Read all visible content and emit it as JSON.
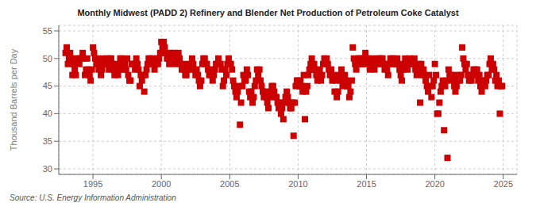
{
  "chart_data": {
    "type": "scatter",
    "title": "Monthly Midwest (PADD 2) Refinery and Blender Net Production of Petroleum Coke Catalyst",
    "ylabel": "Thousand Barrels per Day",
    "annotations": [
      "Source: U.S. Energy Information Administration"
    ],
    "color": "#cc0000",
    "marker": "square",
    "grid": true,
    "xlim": [
      1992.5,
      2026.0
    ],
    "ylim": [
      29,
      56
    ],
    "xticks": [
      1995,
      2000,
      2005,
      2010,
      2015,
      2020,
      2025
    ],
    "yticks": [
      30,
      35,
      40,
      45,
      50,
      55
    ],
    "x": [
      1993.0,
      1993.08,
      1993.17,
      1993.25,
      1993.33,
      1993.42,
      1993.5,
      1993.58,
      1993.67,
      1993.75,
      1993.83,
      1993.92,
      1994.0,
      1994.08,
      1994.17,
      1994.25,
      1994.33,
      1994.42,
      1994.5,
      1994.58,
      1994.67,
      1994.75,
      1994.83,
      1994.92,
      1995.0,
      1995.08,
      1995.17,
      1995.25,
      1995.33,
      1995.42,
      1995.5,
      1995.58,
      1995.67,
      1995.75,
      1995.83,
      1995.92,
      1996.0,
      1996.08,
      1996.17,
      1996.25,
      1996.33,
      1996.42,
      1996.5,
      1996.58,
      1996.67,
      1996.75,
      1996.83,
      1996.92,
      1997.0,
      1997.08,
      1997.17,
      1997.25,
      1997.33,
      1997.42,
      1997.5,
      1997.58,
      1997.67,
      1997.75,
      1997.83,
      1997.92,
      1998.0,
      1998.08,
      1998.17,
      1998.25,
      1998.33,
      1998.42,
      1998.5,
      1998.58,
      1998.67,
      1998.75,
      1998.83,
      1998.92,
      1999.0,
      1999.08,
      1999.17,
      1999.25,
      1999.33,
      1999.42,
      1999.5,
      1999.58,
      1999.67,
      1999.75,
      1999.83,
      1999.92,
      2000.0,
      2000.08,
      2000.17,
      2000.25,
      2000.33,
      2000.42,
      2000.5,
      2000.58,
      2000.67,
      2000.75,
      2000.83,
      2000.92,
      2001.0,
      2001.08,
      2001.17,
      2001.25,
      2001.33,
      2001.42,
      2001.5,
      2001.58,
      2001.67,
      2001.75,
      2001.83,
      2001.92,
      2002.0,
      2002.08,
      2002.17,
      2002.25,
      2002.33,
      2002.42,
      2002.5,
      2002.58,
      2002.67,
      2002.75,
      2002.83,
      2002.92,
      2003.0,
      2003.08,
      2003.17,
      2003.25,
      2003.33,
      2003.42,
      2003.5,
      2003.58,
      2003.67,
      2003.75,
      2003.83,
      2003.92,
      2004.0,
      2004.08,
      2004.17,
      2004.25,
      2004.33,
      2004.42,
      2004.5,
      2004.58,
      2004.67,
      2004.75,
      2004.83,
      2004.92,
      2005.0,
      2005.08,
      2005.17,
      2005.25,
      2005.33,
      2005.42,
      2005.5,
      2005.58,
      2005.67,
      2005.75,
      2005.83,
      2005.92,
      2006.0,
      2006.08,
      2006.17,
      2006.25,
      2006.33,
      2006.42,
      2006.5,
      2006.58,
      2006.67,
      2006.75,
      2006.83,
      2006.92,
      2007.0,
      2007.08,
      2007.17,
      2007.25,
      2007.33,
      2007.42,
      2007.5,
      2007.58,
      2007.67,
      2007.75,
      2007.83,
      2007.92,
      2008.0,
      2008.08,
      2008.17,
      2008.25,
      2008.33,
      2008.42,
      2008.5,
      2008.58,
      2008.67,
      2008.75,
      2008.83,
      2008.92,
      2009.0,
      2009.08,
      2009.17,
      2009.25,
      2009.33,
      2009.42,
      2009.5,
      2009.58,
      2009.67,
      2009.75,
      2009.83,
      2009.92,
      2010.0,
      2010.08,
      2010.17,
      2010.25,
      2010.33,
      2010.42,
      2010.5,
      2010.58,
      2010.67,
      2010.75,
      2010.83,
      2010.92,
      2011.0,
      2011.08,
      2011.17,
      2011.25,
      2011.33,
      2011.42,
      2011.5,
      2011.58,
      2011.67,
      2011.75,
      2011.83,
      2011.92,
      2012.0,
      2012.08,
      2012.17,
      2012.25,
      2012.33,
      2012.42,
      2012.5,
      2012.58,
      2012.67,
      2012.75,
      2012.83,
      2012.92,
      2013.0,
      2013.08,
      2013.17,
      2013.25,
      2013.33,
      2013.42,
      2013.5,
      2013.58,
      2013.67,
      2013.75,
      2013.83,
      2013.92,
      2014.0,
      2014.08,
      2014.17,
      2014.25,
      2014.33,
      2014.42,
      2014.5,
      2014.58,
      2014.67,
      2014.75,
      2014.83,
      2014.92,
      2015.0,
      2015.08,
      2015.17,
      2015.25,
      2015.33,
      2015.42,
      2015.5,
      2015.58,
      2015.67,
      2015.75,
      2015.83,
      2015.92,
      2016.0,
      2016.08,
      2016.17,
      2016.25,
      2016.33,
      2016.42,
      2016.5,
      2016.58,
      2016.67,
      2016.75,
      2016.83,
      2016.92,
      2017.0,
      2017.08,
      2017.17,
      2017.25,
      2017.33,
      2017.42,
      2017.5,
      2017.58,
      2017.67,
      2017.75,
      2017.83,
      2017.92,
      2018.0,
      2018.08,
      2018.17,
      2018.25,
      2018.33,
      2018.42,
      2018.5,
      2018.58,
      2018.67,
      2018.75,
      2018.83,
      2018.92,
      2019.0,
      2019.08,
      2019.17,
      2019.25,
      2019.33,
      2019.42,
      2019.5,
      2019.58,
      2019.67,
      2019.75,
      2019.83,
      2019.92,
      2020.0,
      2020.08,
      2020.17,
      2020.25,
      2020.33,
      2020.42,
      2020.5,
      2020.58,
      2020.67,
      2020.75,
      2020.83,
      2020.92,
      2021.0,
      2021.08,
      2021.17,
      2021.25,
      2021.33,
      2021.42,
      2021.5,
      2021.58,
      2021.67,
      2021.75,
      2021.83,
      2021.92,
      2022.0,
      2022.08,
      2022.17,
      2022.25,
      2022.33,
      2022.42,
      2022.5,
      2022.58,
      2022.67,
      2022.75,
      2022.83,
      2022.92,
      2023.0,
      2023.08,
      2023.17,
      2023.25,
      2023.33,
      2023.42,
      2023.5,
      2023.58,
      2023.67,
      2023.75,
      2023.83,
      2023.92,
      2024.0,
      2024.08,
      2024.17,
      2024.25,
      2024.33,
      2024.42,
      2024.5,
      2024.58,
      2024.67,
      2024.75,
      2024.83,
      2024.92
    ],
    "values": [
      51,
      52,
      49,
      50,
      51,
      50,
      47,
      49,
      48,
      47,
      50,
      50,
      49,
      50,
      50,
      51,
      50,
      47,
      48,
      50,
      48,
      47,
      46,
      48,
      52,
      51,
      50,
      49,
      50,
      48,
      49,
      47,
      48,
      50,
      49,
      49,
      50,
      49,
      48,
      50,
      50,
      49,
      48,
      47,
      48,
      49,
      47,
      48,
      50,
      50,
      49,
      48,
      49,
      48,
      50,
      47,
      46,
      46,
      49,
      49,
      49,
      48,
      50,
      49,
      48,
      45,
      47,
      46,
      47,
      44,
      47,
      48,
      49,
      50,
      50,
      49,
      50,
      49,
      48,
      49,
      50,
      49,
      50,
      51,
      53,
      52,
      53,
      52,
      51,
      50,
      50,
      49,
      51,
      50,
      50,
      51,
      49,
      50,
      50,
      51,
      50,
      49,
      48,
      49,
      48,
      47,
      47,
      48,
      49,
      48,
      49,
      50,
      49,
      48,
      47,
      48,
      47,
      46,
      45,
      46,
      49,
      50,
      50,
      49,
      49,
      48,
      47,
      48,
      47,
      46,
      47,
      48,
      49,
      49,
      50,
      49,
      49,
      48,
      45,
      46,
      48,
      47,
      49,
      50,
      49,
      49,
      48,
      46,
      45,
      44,
      43,
      44,
      45,
      38,
      42,
      45,
      47,
      46,
      46,
      48,
      47,
      44,
      43,
      44,
      42,
      43,
      45,
      46,
      48,
      47,
      48,
      46,
      45,
      44,
      43,
      44,
      43,
      42,
      41,
      43,
      44,
      45,
      45,
      44,
      43,
      43,
      42,
      41,
      42,
      40,
      41,
      39,
      42,
      43,
      44,
      43,
      42,
      41,
      41,
      42,
      36,
      42,
      45,
      46,
      46,
      45,
      46,
      45,
      44,
      47,
      39,
      44,
      45,
      47,
      48,
      49,
      50,
      48,
      49,
      48,
      47,
      46,
      47,
      48,
      46,
      47,
      49,
      50,
      49,
      50,
      49,
      48,
      47,
      48,
      46,
      47,
      44,
      46,
      43,
      44,
      47,
      46,
      48,
      45,
      46,
      47,
      46,
      45,
      45,
      43,
      44,
      46,
      52,
      50,
      49,
      48,
      49,
      50,
      50,
      50,
      49,
      49,
      50,
      51,
      50,
      49,
      50,
      48,
      49,
      50,
      49,
      48,
      49,
      50,
      49,
      50,
      49,
      50,
      50,
      49,
      48,
      49,
      48,
      47,
      49,
      50,
      50,
      49,
      50,
      49,
      49,
      50,
      49,
      48,
      47,
      46,
      48,
      49,
      50,
      49,
      48,
      49,
      50,
      49,
      49,
      49,
      50,
      48,
      47,
      48,
      49,
      42,
      49,
      47,
      48,
      47,
      46,
      45,
      44,
      47,
      45,
      43,
      45,
      46,
      49,
      47,
      40,
      40,
      42,
      44,
      45,
      46,
      37,
      45,
      46,
      32,
      48,
      47,
      47,
      46,
      47,
      45,
      44,
      45,
      46,
      47,
      46,
      47,
      52,
      50,
      49,
      48,
      49,
      47,
      46,
      47,
      46,
      47,
      48,
      48,
      47,
      48,
      46,
      47,
      45,
      44,
      46,
      46,
      45,
      46,
      47,
      47,
      49,
      50,
      48,
      49,
      48,
      46,
      47,
      45,
      46,
      40,
      45,
      45
    ]
  }
}
